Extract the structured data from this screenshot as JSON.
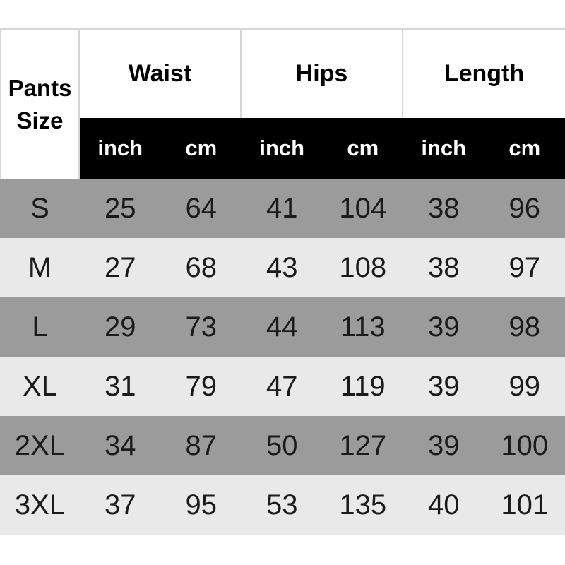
{
  "chart_data": {
    "type": "table",
    "corner_label": "Pants\nSize",
    "group_headers": [
      "Waist",
      "Hips",
      "Length"
    ],
    "unit_headers": [
      "inch",
      "cm",
      "inch",
      "cm",
      "inch",
      "cm"
    ],
    "columns_flat": [
      "Pants Size",
      "Waist inch",
      "Waist cm",
      "Hips inch",
      "Hips cm",
      "Length inch",
      "Length cm"
    ],
    "rows": [
      {
        "size": "S",
        "values": [
          25,
          64,
          41,
          104,
          38,
          96
        ]
      },
      {
        "size": "M",
        "values": [
          27,
          68,
          43,
          108,
          38,
          97
        ]
      },
      {
        "size": "L",
        "values": [
          29,
          73,
          44,
          113,
          39,
          98
        ]
      },
      {
        "size": "XL",
        "values": [
          31,
          79,
          47,
          119,
          39,
          99
        ]
      },
      {
        "size": "2XL",
        "values": [
          34,
          87,
          50,
          127,
          39,
          100
        ]
      },
      {
        "size": "3XL",
        "values": [
          37,
          95,
          53,
          135,
          40,
          101
        ]
      }
    ],
    "layout": {
      "row_striping": "gray/light alternating starting gray",
      "units_bar": "black with white text"
    }
  },
  "colors": {
    "units_bar_bg": "#000000",
    "units_text": "#ffffff",
    "row_gray": "#9b9b9b",
    "row_light": "#e9e9e9",
    "header_bg": "#ffffff",
    "header_text": "#000000",
    "data_text": "#1b1b1b",
    "border": "#d6d6d6",
    "page_bg": "#ffffff"
  }
}
